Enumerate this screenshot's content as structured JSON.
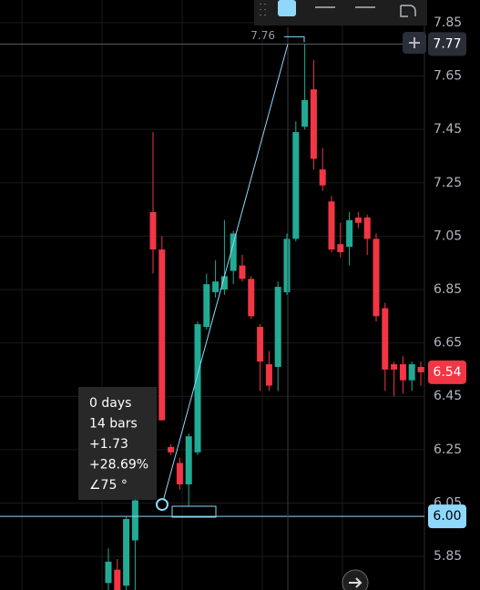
{
  "chart_data": {
    "type": "candlestick",
    "open": [
      5.75,
      5.8,
      5.74,
      5.91,
      null,
      7.14,
      7.0,
      6.26,
      6.2,
      6.12,
      6.24,
      6.71,
      6.84,
      6.85,
      6.92,
      6.94,
      6.89,
      6.71,
      6.57,
      6.56,
      6.84,
      7.04,
      7.46,
      7.6,
      7.3,
      7.18,
      7.02,
      7.01,
      7.12,
      7.12,
      7.04,
      6.78,
      6.57,
      6.57,
      6.51,
      6.56
    ],
    "high": [
      5.88,
      5.84,
      6.0,
      6.08,
      null,
      7.44,
      7.05,
      6.27,
      6.22,
      6.31,
      6.73,
      6.91,
      6.96,
      7.11,
      7.07,
      6.98,
      6.9,
      6.72,
      6.62,
      6.88,
      7.06,
      7.48,
      7.77,
      7.71,
      7.38,
      7.2,
      7.1,
      7.14,
      7.14,
      7.13,
      7.06,
      6.8,
      6.58,
      6.6,
      6.58,
      6.58
    ],
    "low": [
      5.72,
      5.72,
      5.72,
      5.72,
      null,
      6.91,
      6.36,
      6.23,
      6.1,
      6.04,
      6.23,
      6.7,
      6.82,
      6.83,
      6.87,
      6.88,
      6.74,
      6.47,
      6.47,
      6.47,
      6.83,
      7.03,
      7.45,
      7.3,
      7.22,
      6.99,
      6.97,
      6.94,
      7.08,
      6.98,
      6.73,
      6.47,
      6.45,
      6.46,
      6.47,
      6.49
    ],
    "close": [
      5.83,
      5.72,
      5.99,
      6.06,
      null,
      7.0,
      6.36,
      6.24,
      6.12,
      6.3,
      6.72,
      6.87,
      6.88,
      6.9,
      7.06,
      6.89,
      6.75,
      6.58,
      6.49,
      6.86,
      7.04,
      7.44,
      7.56,
      7.34,
      7.24,
      7.0,
      6.99,
      7.11,
      7.1,
      7.04,
      6.75,
      6.55,
      6.55,
      6.51,
      6.57,
      6.54
    ],
    "up_color": "#22ab94",
    "down_color": "#f23645",
    "ylim": [
      5.724,
      7.935
    ],
    "yticks": [
      7.85,
      7.65,
      7.45,
      7.25,
      7.05,
      6.85,
      6.65,
      6.45,
      6.25,
      6.05,
      5.85
    ],
    "grid": true,
    "price_labels": [
      7.77,
      {
        "value": 6,
        "label": "6.00"
      },
      6.54
    ],
    "price_label_colors": [
      "#2a2e39",
      "#90d8fb",
      "#f23645"
    ],
    "measure_label": 7.76,
    "tooltip": [
      "0 days",
      "14 bars",
      "+1.73",
      "+28.69%",
      "∠75 °"
    ]
  }
}
